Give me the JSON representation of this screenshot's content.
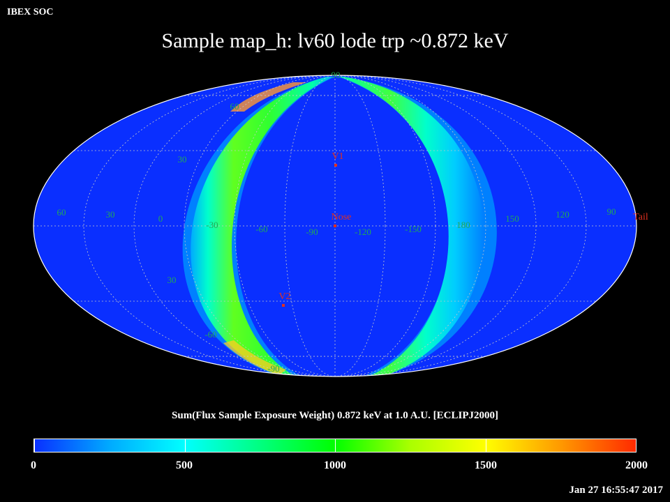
{
  "header": {
    "org": "IBEX SOC",
    "title": "Sample map_h: lv60 lode trp ~0.872 keV"
  },
  "map": {
    "projection": "Mollweide",
    "frame": "ECLIPJ2000",
    "background_color": "#0a2fff",
    "grid_color": "#c8c8c8",
    "longitude_labels": [
      "60",
      "30",
      "0",
      "-30",
      "-60",
      "-90",
      "-120",
      "-150",
      "180",
      "150",
      "120",
      "90"
    ],
    "latitude_labels_upper": [
      "90",
      "60",
      "30"
    ],
    "latitude_labels_lower": [
      "30",
      "-60",
      "-90"
    ],
    "markers": [
      {
        "label": "V1",
        "color": "#e03020"
      },
      {
        "label": "Nose",
        "color": "#e03020"
      },
      {
        "label": "V2",
        "color": "#e03020"
      },
      {
        "label": "Tail",
        "color": "#e03020"
      }
    ]
  },
  "colorbar": {
    "label": "Sum(Flux Sample Exposure Weight)  0.872 keV at 1.0 A.U. [ECLIPJ2000]",
    "range": [
      0,
      2000
    ],
    "ticks": [
      "0",
      "500",
      "1000",
      "1500",
      "2000"
    ],
    "tick_values": [
      0,
      500,
      1000,
      1500,
      2000
    ],
    "colors": [
      "#0a2fff",
      "#00aaff",
      "#00ffff",
      "#00ff80",
      "#00ff00",
      "#aaff00",
      "#ffff00",
      "#ff9900",
      "#ff2a00"
    ]
  },
  "footer": {
    "timestamp": "Jan 27 16:55:47 2017"
  }
}
